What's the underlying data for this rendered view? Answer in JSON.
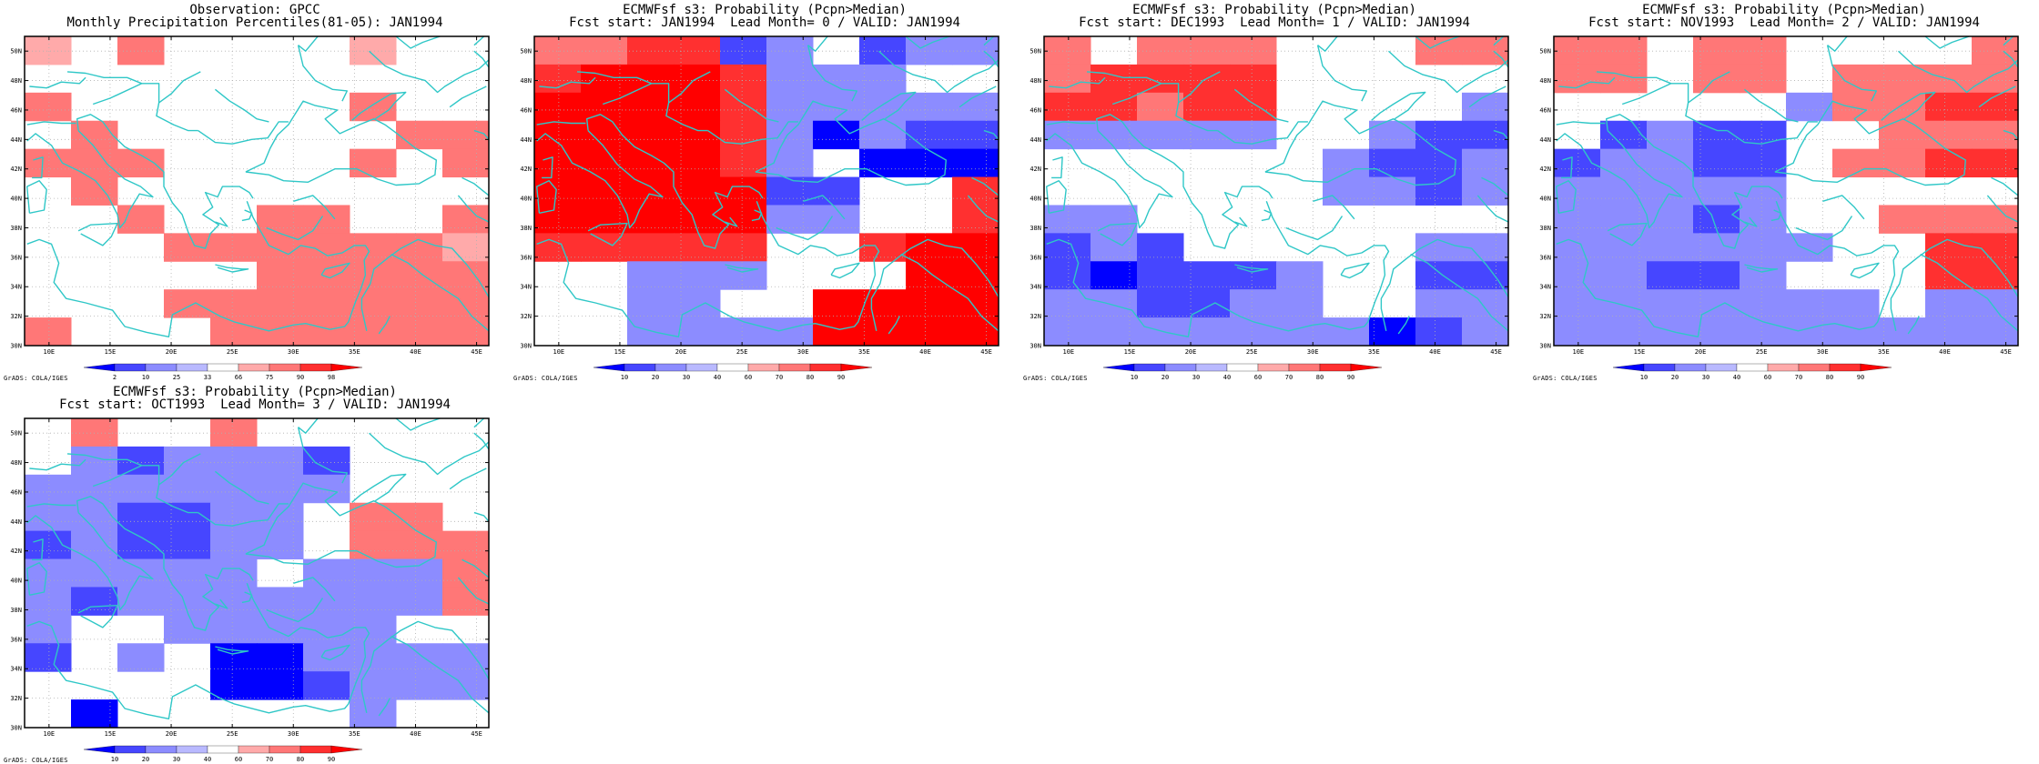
{
  "credit": "GrADS: COLA/IGES",
  "lon_ticks": [
    "10E",
    "15E",
    "20E",
    "25E",
    "30E",
    "35E",
    "40E",
    "45E"
  ],
  "lat_ticks": [
    "30N",
    "32N",
    "34N",
    "36N",
    "38N",
    "40N",
    "42N",
    "44N",
    "46N",
    "48N",
    "50N"
  ],
  "colors": {
    "coast": "#2fc7c7",
    "grid_line": "#b0b0b0"
  },
  "panels": [
    {
      "title1": "Observation: GPCC",
      "title2": "Monthly Precipitation Percentiles(81-05): JAN1994",
      "colorbar": {
        "labels": [
          "2",
          "10",
          "25",
          "33",
          "66",
          "75",
          "90",
          "98"
        ],
        "colors": [
          "#0000ff",
          "#4646ff",
          "#8c8cff",
          "#b9b9ff",
          "#ffffff",
          "#ffaaaa",
          "#ff7777",
          "#ff3030",
          "#ff0000"
        ]
      },
      "grid": [
        "5060000500",
        "0000000000",
        "6000000600",
        "0600000066",
        "6660000606",
        "0600000000",
        "0060066006",
        "0006666665",
        "0000066666",
        "0006666666",
        "6000666666"
      ]
    },
    {
      "title1": "ECMWFsf s3: Probability (Pcpn>Median)",
      "title2": "Fcst start: JAN1994  Lead Month= 0 / VALID: JAN1994",
      "colorbar": {
        "labels": [
          "10",
          "20",
          "30",
          "40",
          "60",
          "70",
          "80",
          "90"
        ],
        "colors": [
          "#0000ff",
          "#4646ff",
          "#8c8cff",
          "#b9b9ff",
          "#ffffff",
          "#ffaaaa",
          "#ff7777",
          "#ff3030",
          "#ff0000"
        ]
      },
      "grid": [
        "6677230233",
        "7888733300",
        "8888733333",
        "8888731322",
        "8888730111",
        "8888822007",
        "8888833007",
        "7777700788",
        "0033300088",
        "0033008888",
        "0033338888"
      ]
    },
    {
      "title1": "ECMWFsf s3: Probability (Pcpn>Median)",
      "title2": "Fcst start: DEC1993  Lead Month= 1 / VALID: JAN1994",
      "colorbar": {
        "labels": [
          "10",
          "20",
          "30",
          "40",
          "60",
          "70",
          "80",
          "90"
        ],
        "colors": [
          "#0000ff",
          "#4646ff",
          "#8c8cff",
          "#b9b9ff",
          "#ffffff",
          "#ffaaaa",
          "#ff7777",
          "#ff3030",
          "#ff0000"
        ]
      },
      "grid": [
        "6066600066",
        "6777700000",
        "7767700003",
        "3333300322",
        "0000003223",
        "0000003323",
        "3300000000",
        "2320000033",
        "2122230022",
        "3322330033",
        "3333333123"
      ]
    },
    {
      "title1": "ECMWFsf s3: Probability (Pcpn>Median)",
      "title2": "Fcst start: NOV1993  Lead Month= 2 / VALID: JAN1994",
      "colorbar": {
        "labels": [
          "10",
          "20",
          "30",
          "40",
          "60",
          "70",
          "80",
          "90"
        ],
        "colors": [
          "#0000ff",
          "#4646ff",
          "#8c8cff",
          "#b9b9ff",
          "#ffffff",
          "#ffaaaa",
          "#ff7777",
          "#ff3030",
          "#ff0000"
        ]
      },
      "grid": [
        "6606600006",
        "6606606666",
        "0000036677",
        "0232200666",
        "2332206677",
        "3333300000",
        "3332300666",
        "3333330077",
        "3322300077",
        "3333333033",
        "3333333333"
      ]
    },
    {
      "title1": "ECMWFsf s3: Probability (Pcpn>Median)",
      "title2": "Fcst start: OCT1993  Lead Month= 3 / VALID: JAN1994",
      "colorbar": {
        "labels": [
          "10",
          "20",
          "30",
          "40",
          "60",
          "70",
          "80",
          "90"
        ],
        "colors": [
          "#0000ff",
          "#4646ff",
          "#8c8cff",
          "#b9b9ff",
          "#ffffff",
          "#ffaaaa",
          "#ff7777",
          "#ff3030",
          "#ff0000"
        ]
      },
      "grid": [
        "0600600000",
        "0323332000",
        "3333333000",
        "3322330660",
        "2322330666",
        "3333303336",
        "3233333336",
        "3003333300",
        "2030113333",
        "0000112333",
        "0100000300"
      ]
    }
  ]
}
